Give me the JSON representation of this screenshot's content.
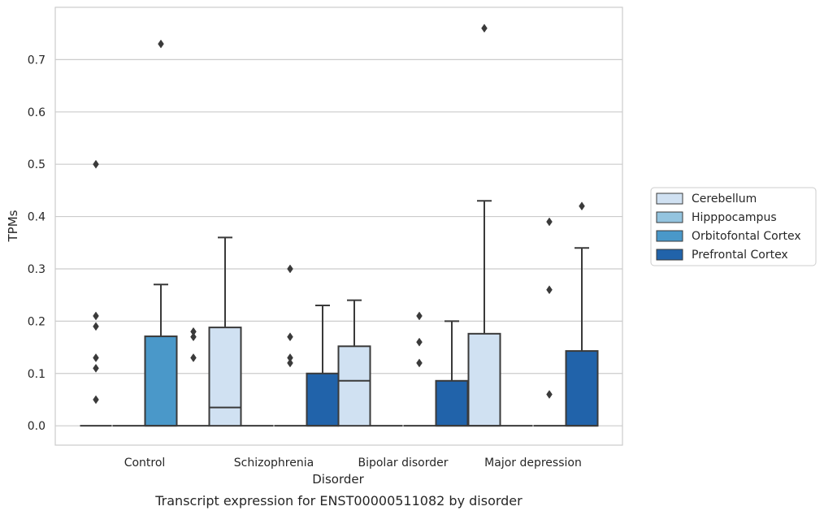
{
  "caption": "Transcript expression for ENST00000511082 by disorder",
  "chart_data": {
    "type": "box",
    "title": "",
    "xlabel": "Disorder",
    "ylabel": "TPMs",
    "ylim": [
      -0.037,
      0.8
    ],
    "yticks": [
      0.0,
      0.1,
      0.2,
      0.3,
      0.4,
      0.5,
      0.6,
      0.7
    ],
    "ytick_labels": [
      "0.0",
      "0.1",
      "0.2",
      "0.3",
      "0.4",
      "0.5",
      "0.6",
      "0.7"
    ],
    "grid": "horizontal",
    "legend_position": "right",
    "categories": [
      "Control",
      "Schizophrenia",
      "Bipolar disorder",
      "Major depression"
    ],
    "series": [
      {
        "name": "Cerebellum",
        "color": "#d0e1f2",
        "boxes": [
          {
            "category": "Control",
            "q1": 0,
            "median": 0,
            "q3": 0,
            "whisker_low": 0,
            "whisker_high": 0,
            "outliers": [
              0.05,
              0.11,
              0.13,
              0.19,
              0.21,
              0.5
            ]
          },
          {
            "category": "Schizophrenia",
            "q1": 0,
            "median": 0.035,
            "q3": 0.188,
            "whisker_low": 0,
            "whisker_high": 0.36,
            "outliers": []
          },
          {
            "category": "Bipolar disorder",
            "q1": 0,
            "median": 0.086,
            "q3": 0.152,
            "whisker_low": 0,
            "whisker_high": 0.24,
            "outliers": []
          },
          {
            "category": "Major depression",
            "q1": 0,
            "median": 0,
            "q3": 0.176,
            "whisker_low": 0,
            "whisker_high": 0.43,
            "outliers": [
              0.76
            ]
          }
        ]
      },
      {
        "name": "Hipppocampus",
        "color": "#94c4df",
        "boxes": [
          {
            "category": "Control",
            "q1": 0,
            "median": 0,
            "q3": 0,
            "whisker_low": 0,
            "whisker_high": 0,
            "outliers": []
          },
          {
            "category": "Schizophrenia",
            "q1": 0,
            "median": 0,
            "q3": 0,
            "whisker_low": 0,
            "whisker_high": 0,
            "outliers": []
          },
          {
            "category": "Bipolar disorder",
            "q1": 0,
            "median": 0,
            "q3": 0,
            "whisker_low": 0,
            "whisker_high": 0,
            "outliers": []
          },
          {
            "category": "Major depression",
            "q1": 0,
            "median": 0,
            "q3": 0,
            "whisker_low": 0,
            "whisker_high": 0,
            "outliers": []
          }
        ]
      },
      {
        "name": "Orbitofontal Cortex",
        "color": "#4a98c9",
        "boxes": [
          {
            "category": "Control",
            "q1": 0,
            "median": 0,
            "q3": 0.171,
            "whisker_low": 0,
            "whisker_high": 0.27,
            "outliers": [
              0.73
            ]
          },
          {
            "category": "Schizophrenia",
            "q1": 0,
            "median": 0,
            "q3": 0,
            "whisker_low": 0,
            "whisker_high": 0,
            "outliers": [
              0.12,
              0.13,
              0.17,
              0.3
            ]
          },
          {
            "category": "Bipolar disorder",
            "q1": 0,
            "median": 0,
            "q3": 0,
            "whisker_low": 0,
            "whisker_high": 0,
            "outliers": [
              0.12,
              0.16,
              0.21
            ]
          },
          {
            "category": "Major depression",
            "q1": 0,
            "median": 0,
            "q3": 0,
            "whisker_low": 0,
            "whisker_high": 0,
            "outliers": [
              0.06,
              0.26,
              0.39
            ]
          }
        ]
      },
      {
        "name": "Prefrontal Cortex",
        "color": "#2163aa",
        "boxes": [
          {
            "category": "Control",
            "q1": 0,
            "median": 0,
            "q3": 0,
            "whisker_low": 0,
            "whisker_high": 0,
            "outliers": [
              0.13,
              0.17,
              0.18
            ]
          },
          {
            "category": "Schizophrenia",
            "q1": 0,
            "median": 0,
            "q3": 0.1,
            "whisker_low": 0,
            "whisker_high": 0.23,
            "outliers": []
          },
          {
            "category": "Bipolar disorder",
            "q1": 0,
            "median": 0,
            "q3": 0.086,
            "whisker_low": 0,
            "whisker_high": 0.2,
            "outliers": []
          },
          {
            "category": "Major depression",
            "q1": 0,
            "median": 0,
            "q3": 0.143,
            "whisker_low": 0,
            "whisker_high": 0.34,
            "outliers": [
              0.42
            ]
          }
        ]
      }
    ]
  }
}
